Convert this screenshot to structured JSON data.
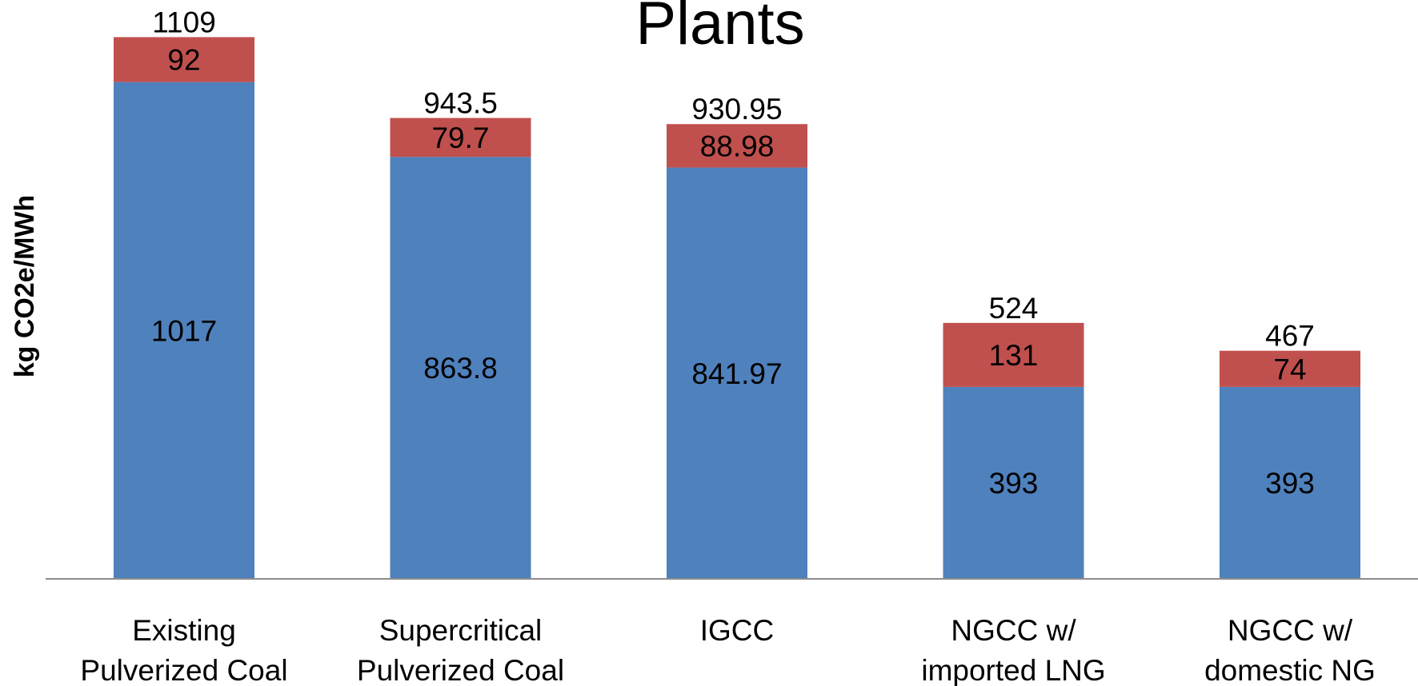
{
  "chart_data": {
    "type": "bar",
    "stacked": true,
    "title": "Plants",
    "ylabel": "kg CO2e/MWh",
    "xlabel": "",
    "ylim": [
      0,
      1185
    ],
    "grid": false,
    "categories": [
      [
        "Existing",
        "Pulverized Coal"
      ],
      [
        "Supercritical",
        "Pulverized Coal"
      ],
      [
        "IGCC"
      ],
      [
        "NGCC w/",
        "imported LNG"
      ],
      [
        "NGCC w/",
        "domestic NG"
      ]
    ],
    "series": [
      {
        "values": [
          1017,
          863.8,
          841.97,
          393,
          393
        ],
        "labels": [
          "1017",
          "863.8",
          "841.97",
          "393",
          "393"
        ],
        "color": "#4f81bd"
      },
      {
        "values": [
          92,
          79.7,
          88.98,
          131,
          74
        ],
        "labels": [
          "92",
          "79.7",
          "88.98",
          "131",
          "74"
        ],
        "color": "#c0504d"
      }
    ],
    "totals": [
      "1109",
      "943.5",
      "930.95",
      "524",
      "467"
    ]
  }
}
